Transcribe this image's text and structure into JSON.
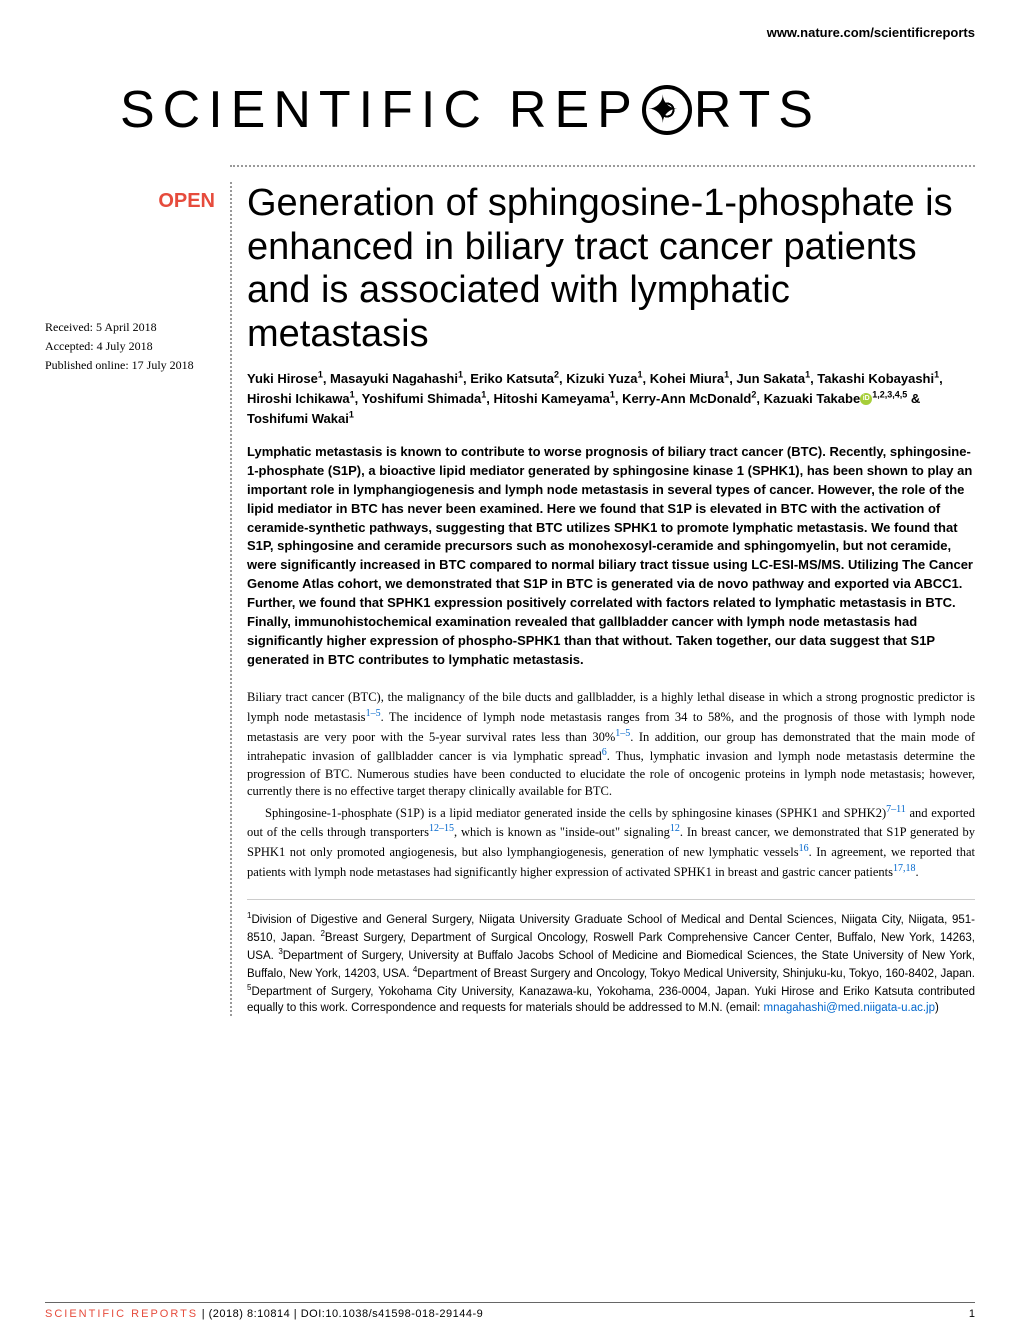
{
  "header": {
    "url": "www.nature.com/scientificreports"
  },
  "journal_logo": {
    "part1": "SCIENTIFIC",
    "part2": "REP",
    "part3": "RTS"
  },
  "badge": {
    "open": "OPEN"
  },
  "dates": {
    "received": "Received: 5 April 2018",
    "accepted": "Accepted: 4 July 2018",
    "published": "Published online: 17 July 2018"
  },
  "article": {
    "title": "Generation of sphingosine-1-phosphate is enhanced in biliary tract cancer patients and is associated with lymphatic metastasis",
    "authors_html": "Yuki Hirose<sup>1</sup>, Masayuki Nagahashi<sup>1</sup>, Eriko Katsuta<sup>2</sup>, Kizuki Yuza<sup>1</sup>, Kohei Miura<sup>1</sup>, Jun Sakata<sup>1</sup>, Takashi Kobayashi<sup>1</sup>, Hiroshi Ichikawa<sup>1</sup>, Yoshifumi Shimada<sup>1</sup>, Hitoshi Kameyama<sup>1</sup>, Kerry-Ann McDonald<sup>2</sup>, Kazuaki Takabe",
    "authors_html2": "<sup>1,2,3,4,5</sup> & Toshifumi Wakai<sup>1</sup>",
    "abstract": "Lymphatic metastasis is known to contribute to worse prognosis of biliary tract cancer (BTC). Recently, sphingosine-1-phosphate (S1P), a bioactive lipid mediator generated by sphingosine kinase 1 (SPHK1), has been shown to play an important role in lymphangiogenesis and lymph node metastasis in several types of cancer. However, the role of the lipid mediator in BTC has never been examined. Here we found that S1P is elevated in BTC with the activation of ceramide-synthetic pathways, suggesting that BTC utilizes SPHK1 to promote lymphatic metastasis. We found that S1P, sphingosine and ceramide precursors such as monohexosyl-ceramide and sphingomyelin, but not ceramide, were significantly increased in BTC compared to normal biliary tract tissue using LC-ESI-MS/MS. Utilizing The Cancer Genome Atlas cohort, we demonstrated that S1P in BTC is generated via de novo pathway and exported via ABCC1. Further, we found that SPHK1 expression positively correlated with factors related to lymphatic metastasis in BTC. Finally, immunohistochemical examination revealed that gallbladder cancer with lymph node metastasis had significantly higher expression of phospho-SPHK1 than that without. Taken together, our data suggest that S1P generated in BTC contributes to lymphatic metastasis."
  },
  "body": {
    "p1a": "Biliary tract cancer (BTC), the malignancy of the bile ducts and gallbladder, is a highly lethal disease in which a strong prognostic predictor is lymph node metastasis",
    "p1b": ". The incidence of lymph node metastasis ranges from 34 to 58%, and the prognosis of those with lymph node metastasis are very poor with the 5-year survival rates less than 30%",
    "p1c": ". In addition, our group has demonstrated that the main mode of intrahepatic invasion of gallbladder cancer is via lymphatic spread",
    "p1d": ". Thus, lymphatic invasion and lymph node metastasis determine the progression of BTC. Numerous studies have been conducted to elucidate the role of oncogenic proteins in lymph node metastasis; however, currently there is no effective target therapy clinically available for BTC.",
    "p2a": "Sphingosine-1-phosphate (S1P) is a lipid mediator generated inside the cells by sphingosine kinases (SPHK1 and SPHK2)",
    "p2b": " and exported out of the cells through transporters",
    "p2c": ", which is known as \"inside-out\" signaling",
    "p2d": ". In breast cancer, we demonstrated that S1P generated by SPHK1 not only promoted angiogenesis, but also lymphangiogenesis, generation of new lymphatic vessels",
    "p2e": ". In agreement, we reported that patients with lymph node metastases had significantly higher expression of activated SPHK1 in breast and gastric cancer patients",
    "p2f": ".",
    "ref1": "1–5",
    "ref2": "1–5",
    "ref3": "6",
    "ref4": "7–11",
    "ref5": "12–15",
    "ref6": "12",
    "ref7": "16",
    "ref8": "17,18"
  },
  "affiliations": {
    "text": "Division of Digestive and General Surgery, Niigata University Graduate School of Medical and Dental Sciences, Niigata City, Niigata, 951-8510, Japan. ",
    "text2": "Breast Surgery, Department of Surgical Oncology, Roswell Park Comprehensive Cancer Center, Buffalo, New York, 14263, USA. ",
    "text3": "Department of Surgery, University at Buffalo Jacobs School of Medicine and Biomedical Sciences, the State University of New York, Buffalo, New York, 14203, USA. ",
    "text4": "Department of Breast Surgery and Oncology, Tokyo Medical University, Shinjuku-ku, Tokyo, 160-8402, Japan. ",
    "text5": "Department of Surgery, Yokohama City University, Kanazawa-ku, Yokohama, 236-0004, Japan. Yuki Hirose and Eriko Katsuta contributed equally to this work. Correspondence and requests for materials should be addressed to M.N. (email: ",
    "email": "mnagahashi@med.niigata-u.ac.jp",
    "text6": ")"
  },
  "footer": {
    "journal": "SCIENTIFIC REPORTS",
    "citation": " | (2018) 8:10814 | DOI:10.1038/s41598-018-29144-9",
    "page": "1"
  },
  "colors": {
    "accent": "#e64b3c",
    "link": "#0066cc",
    "orcid": "#a6ce39"
  }
}
